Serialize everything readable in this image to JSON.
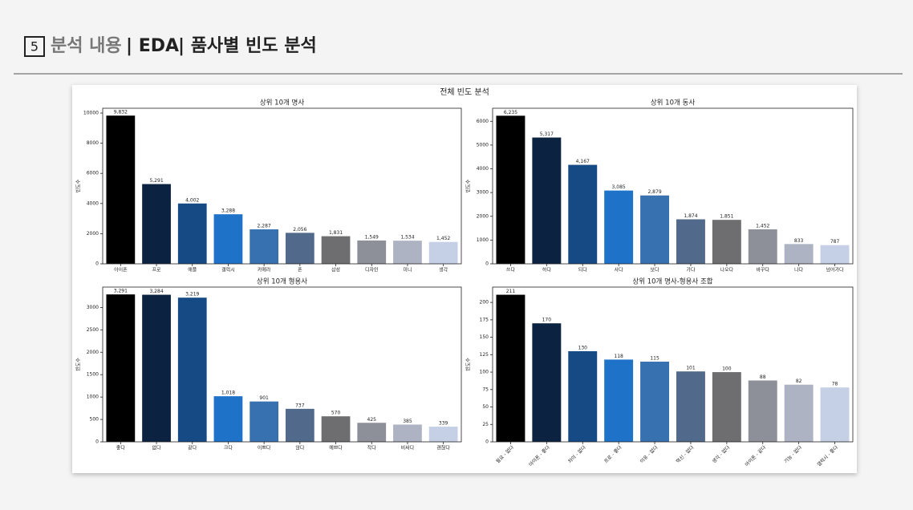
{
  "header": {
    "number": "5",
    "section": "분석 내용",
    "part1": "| EDA",
    "part2": "| 품사별 빈도 분석"
  },
  "figure_title": "전체 빈도 분석",
  "chart_data": [
    {
      "type": "bar",
      "title": "상위 10개 명사",
      "ylabel": "빈도수",
      "categories": [
        "아이폰",
        "프로",
        "애플",
        "갤럭시",
        "카메라",
        "폰",
        "삼성",
        "디자인",
        "미니",
        "생각"
      ],
      "values": [
        9832,
        5291,
        4002,
        3288,
        2287,
        2056,
        1831,
        1549,
        1534,
        1452
      ],
      "value_labels": [
        "9,832",
        "5,291",
        "4,002",
        "3,288",
        "2,287",
        "2,056",
        "1,831",
        "1,549",
        "1,534",
        "1,452"
      ],
      "colors": [
        "#000000",
        "#0b2341",
        "#164a84",
        "#1e72c8",
        "#3871b0",
        "#51698a",
        "#6e6e70",
        "#8d9099",
        "#adb3c2",
        "#c5d0e6"
      ],
      "ylim": [
        0,
        10320
      ],
      "yticks": [
        0,
        2000,
        4000,
        6000,
        8000,
        10000
      ]
    },
    {
      "type": "bar",
      "title": "상위 10개 동사",
      "ylabel": "빈도수",
      "categories": [
        "쓰다",
        "하다",
        "되다",
        "사다",
        "보다",
        "가다",
        "나오다",
        "바꾸다",
        "나다",
        "넘어가다"
      ],
      "values": [
        6235,
        5317,
        4167,
        3085,
        2879,
        1874,
        1851,
        1452,
        833,
        787
      ],
      "value_labels": [
        "6,235",
        "5,317",
        "4,167",
        "3,085",
        "2,879",
        "1,874",
        "1,851",
        "1,452",
        "833",
        "787"
      ],
      "colors": [
        "#000000",
        "#0b2341",
        "#164a84",
        "#1e72c8",
        "#3871b0",
        "#51698a",
        "#6e6e70",
        "#8d9099",
        "#adb3c2",
        "#c5d0e6"
      ],
      "ylim": [
        0,
        6550
      ],
      "yticks": [
        0,
        1000,
        2000,
        3000,
        4000,
        5000,
        6000
      ]
    },
    {
      "type": "bar",
      "title": "상위 10개 형용사",
      "ylabel": "빈도수",
      "categories": [
        "좋다",
        "없다",
        "같다",
        "크다",
        "이쁘다",
        "않다",
        "예쁘다",
        "작다",
        "비싸다",
        "괜찮다"
      ],
      "values": [
        3291,
        3284,
        3219,
        1018,
        901,
        737,
        570,
        425,
        385,
        339
      ],
      "value_labels": [
        "3,291",
        "3,284",
        "3,219",
        "1,018",
        "901",
        "737",
        "570",
        "425",
        "385",
        "339"
      ],
      "colors": [
        "#000000",
        "#0b2341",
        "#164a84",
        "#1e72c8",
        "#3871b0",
        "#51698a",
        "#6e6e70",
        "#8d9099",
        "#adb3c2",
        "#c5d0e6"
      ],
      "ylim": [
        0,
        3455
      ],
      "yticks": [
        0,
        500,
        1000,
        1500,
        2000,
        2500,
        3000
      ]
    },
    {
      "type": "bar",
      "title": "상위 10개 명사-형용사 조합",
      "ylabel": "빈도수",
      "categories": [
        "필요 - 없다",
        "아이폰 - 좋다",
        "차이 - 없다",
        "프로 - 좋다",
        "이유 - 없다",
        "혁신 - 없다",
        "생각 - 없다",
        "아이폰 - 같다",
        "기능 - 없다",
        "갤럭시 - 좋다"
      ],
      "values": [
        211,
        170,
        130,
        118,
        115,
        101,
        100,
        88,
        82,
        78
      ],
      "colors": [
        "#000000",
        "#0b2341",
        "#164a84",
        "#1e72c8",
        "#3871b0",
        "#51698a",
        "#6e6e70",
        "#8d9099",
        "#adb3c2",
        "#c5d0e6"
      ],
      "ylim": [
        0,
        222
      ],
      "yticks": [
        0,
        25,
        50,
        75,
        100,
        125,
        150,
        175,
        200
      ],
      "xtick_rotation": 45
    }
  ]
}
